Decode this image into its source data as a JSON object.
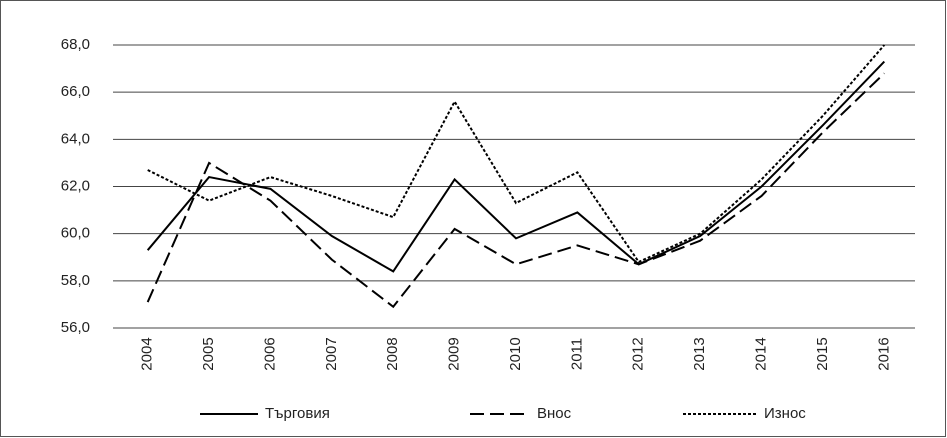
{
  "chart_data": {
    "type": "line",
    "categories": [
      "2004",
      "2005",
      "2006",
      "2007",
      "2008",
      "2009",
      "2010",
      "2011",
      "2012",
      "2013",
      "2014",
      "2015",
      "2016"
    ],
    "series": [
      {
        "name": "Търговия",
        "color": "#000000",
        "style": "solid",
        "values": [
          59.3,
          62.4,
          61.9,
          59.9,
          58.4,
          62.3,
          59.8,
          60.9,
          58.7,
          59.9,
          62.0,
          64.6,
          67.3
        ]
      },
      {
        "name": "Внос",
        "color": "#000000",
        "style": "dashed",
        "values": [
          57.1,
          63.0,
          61.4,
          58.9,
          56.9,
          60.2,
          58.7,
          59.5,
          58.7,
          59.7,
          61.6,
          64.3,
          66.8
        ]
      },
      {
        "name": "Износ",
        "color": "#000000",
        "style": "dotted",
        "values": [
          62.7,
          61.4,
          62.4,
          61.6,
          60.7,
          65.6,
          61.3,
          62.6,
          58.8,
          60.0,
          62.3,
          65.0,
          68.0
        ]
      }
    ],
    "ylim": [
      56,
      68
    ],
    "yticks": [
      {
        "value": 56,
        "label": "56,0"
      },
      {
        "value": 58,
        "label": "58,0"
      },
      {
        "value": 60,
        "label": "60,0"
      },
      {
        "value": 62,
        "label": "62,0"
      },
      {
        "value": 64,
        "label": "64,0"
      },
      {
        "value": 66,
        "label": "66,0"
      },
      {
        "value": 68,
        "label": "68,0"
      }
    ],
    "grid": true,
    "legend": "bottom"
  }
}
